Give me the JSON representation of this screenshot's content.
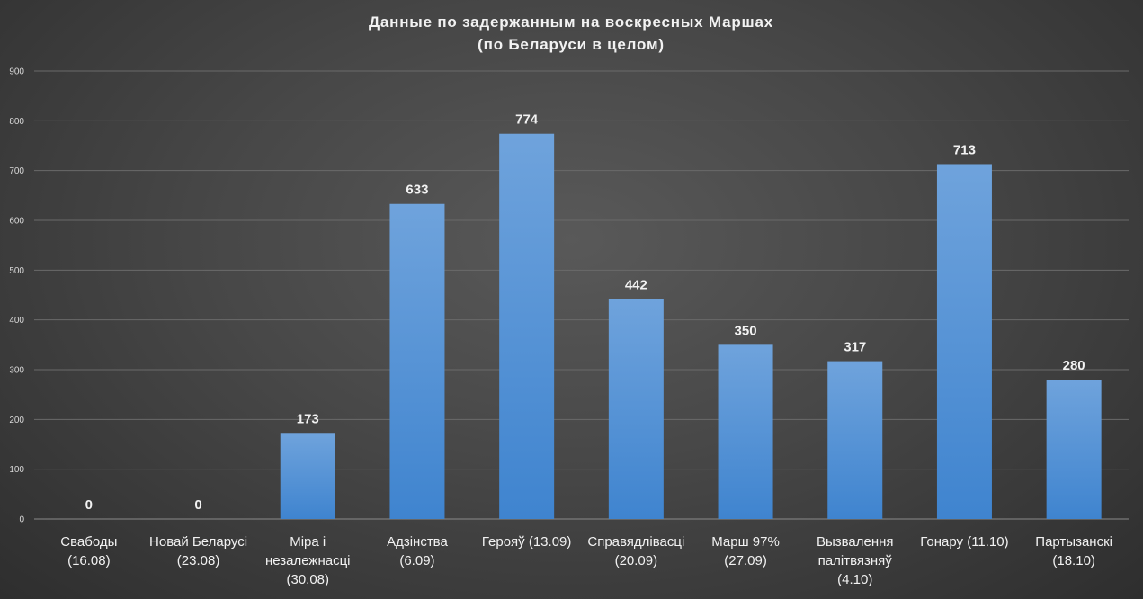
{
  "chart_data": {
    "type": "bar",
    "title_lines": [
      "Данные  по  задержанным  на  воскресных  Маршах",
      "(по  Беларуси  в  целом)"
    ],
    "categories": [
      [
        "Свабоды",
        "(16.08)"
      ],
      [
        "Новай Беларусі",
        "(23.08)"
      ],
      [
        "Міра і",
        "незалежнасці",
        "(30.08)"
      ],
      [
        "Адзінства",
        "(6.09)"
      ],
      [
        "Герояў (13.09)"
      ],
      [
        "Справядлівасці",
        "(20.09)"
      ],
      [
        "Марш 97%",
        "(27.09)"
      ],
      [
        "Вызвалення",
        "палітвязняў",
        "(4.10)"
      ],
      [
        "Гонару (11.10)"
      ],
      [
        "Партызанскі",
        "(18.10)"
      ]
    ],
    "values": [
      0,
      0,
      173,
      633,
      774,
      442,
      350,
      317,
      713,
      280
    ],
    "yticks": [
      0,
      100,
      200,
      300,
      400,
      500,
      600,
      700,
      800,
      900
    ],
    "ylim": [
      0,
      900
    ],
    "grid": true,
    "legend": "none",
    "bar_color_top": "#6fa3dc",
    "bar_color_bottom": "#3f84cf",
    "gridline_color": "#6a6a6a"
  }
}
